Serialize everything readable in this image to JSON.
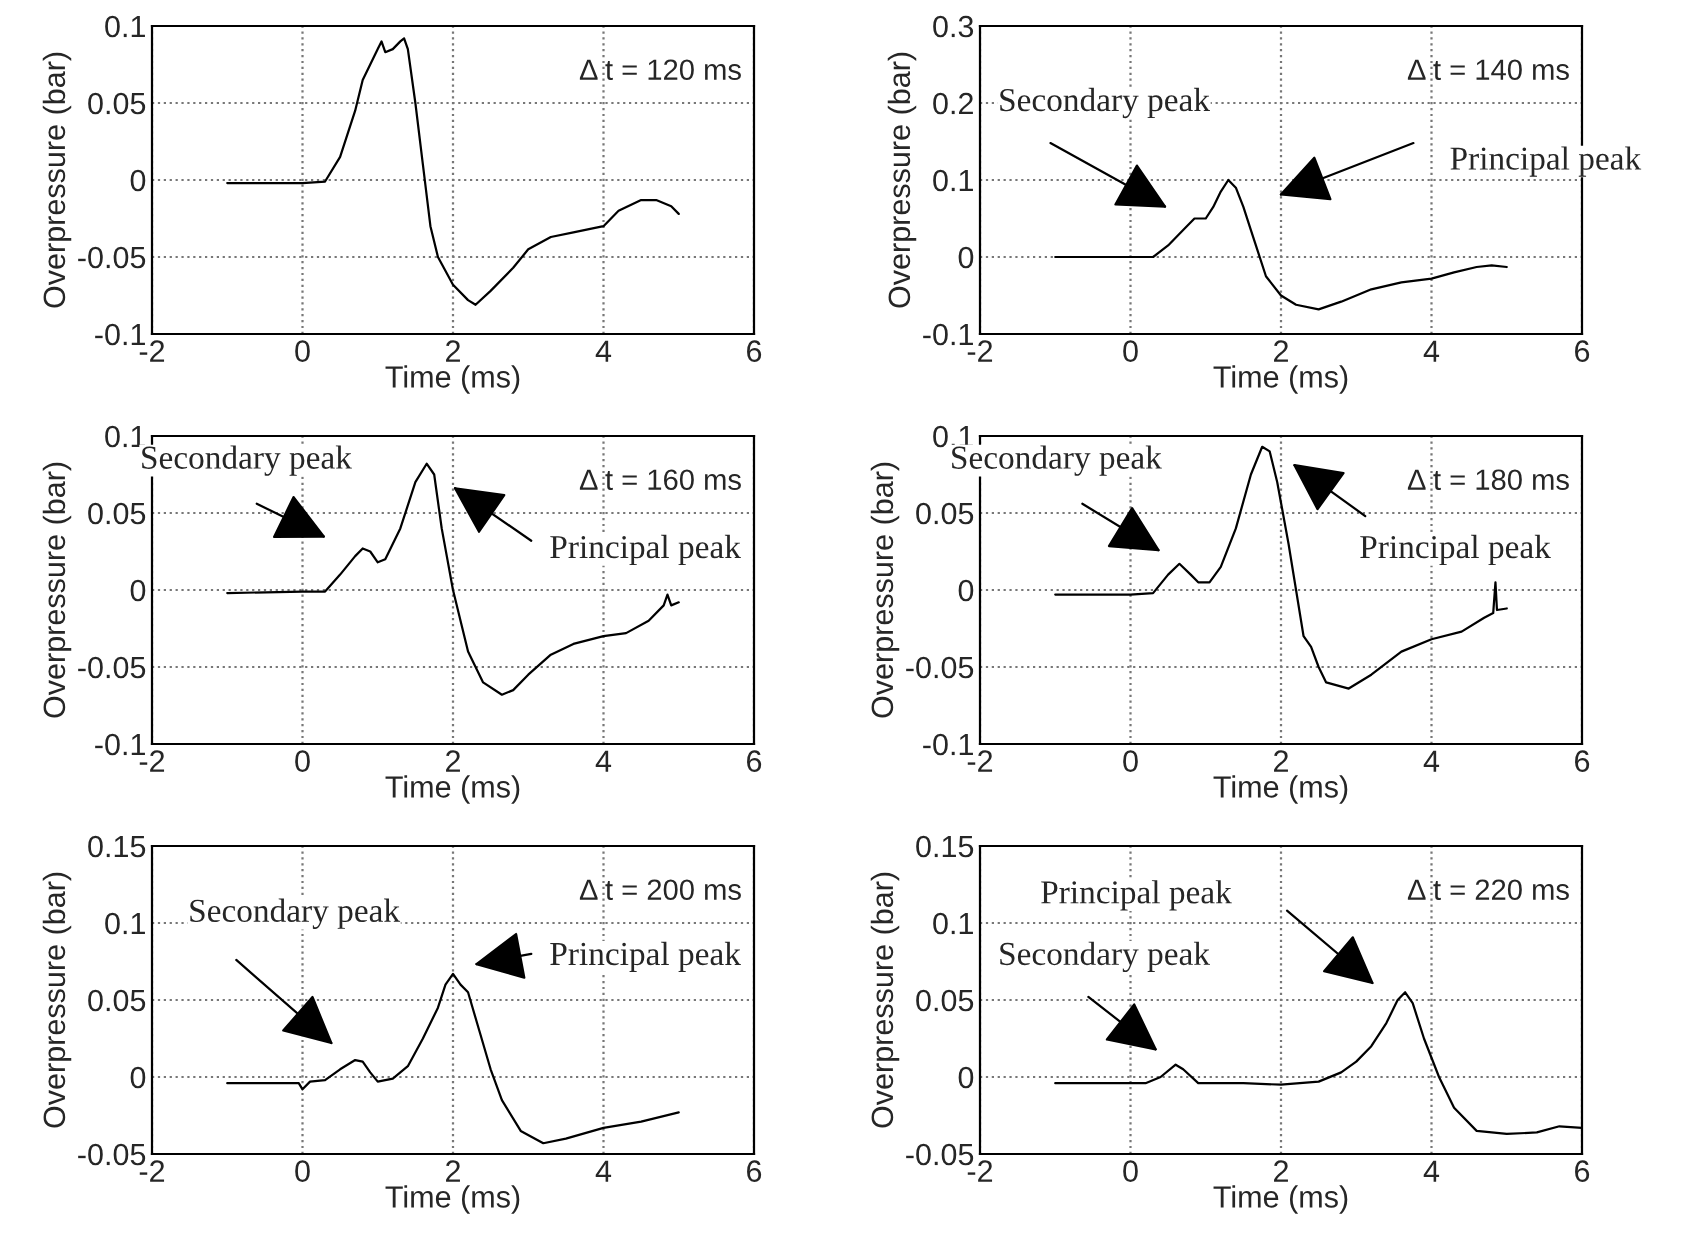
{
  "chart_data": [
    {
      "type": "line",
      "xlabel": "Time (ms)",
      "ylabel": "Overpressure (bar)",
      "xlim": [
        -2,
        6
      ],
      "ylim": [
        -0.1,
        0.1
      ],
      "xticks": [
        -2,
        0,
        2,
        4,
        6
      ],
      "yticks": [
        -0.1,
        -0.05,
        0,
        0.05,
        0.1
      ],
      "grid": true,
      "legend": false,
      "marker": "none",
      "line_style": "solid",
      "annotations": [
        "Δ t = 120 ms"
      ],
      "series": [
        {
          "color": "#000000",
          "x": [
            -1,
            -0.5,
            0,
            0.3,
            0.5,
            0.7,
            0.8,
            0.9,
            1.0,
            1.05,
            1.1,
            1.2,
            1.3,
            1.35,
            1.4,
            1.5,
            1.6,
            1.7,
            1.8,
            2.0,
            2.2,
            2.3,
            2.5,
            2.8,
            3.0,
            3.3,
            3.6,
            4.0,
            4.2,
            4.5,
            4.7,
            4.9,
            5.0
          ],
          "values": [
            -0.002,
            -0.002,
            -0.002,
            -0.001,
            0.015,
            0.045,
            0.065,
            0.075,
            0.085,
            0.09,
            0.083,
            0.085,
            0.09,
            0.092,
            0.085,
            0.05,
            0.01,
            -0.03,
            -0.05,
            -0.068,
            -0.078,
            -0.081,
            -0.072,
            -0.057,
            -0.045,
            -0.037,
            -0.034,
            -0.03,
            -0.02,
            -0.013,
            -0.013,
            -0.017,
            -0.022
          ]
        }
      ]
    },
    {
      "type": "line",
      "xlabel": "Time (ms)",
      "ylabel": "Overpressure (bar)",
      "xlim": [
        -2,
        6
      ],
      "ylim": [
        -0.1,
        0.3
      ],
      "xticks": [
        -2,
        0,
        2,
        4,
        6
      ],
      "yticks": [
        -0.1,
        0,
        0.1,
        0.2,
        0.3
      ],
      "grid": true,
      "legend": false,
      "marker": "none",
      "line_style": "solid",
      "annotations": [
        "Δ t = 140 ms",
        "Secondary peak",
        "Principal peak"
      ],
      "series": [
        {
          "color": "#000000",
          "x": [
            -1,
            0,
            0.3,
            0.5,
            0.7,
            0.85,
            1.0,
            1.1,
            1.2,
            1.3,
            1.4,
            1.5,
            1.6,
            1.7,
            1.8,
            2.0,
            2.2,
            2.5,
            2.8,
            3.2,
            3.6,
            4.0,
            4.3,
            4.6,
            4.8,
            5.0
          ],
          "values": [
            0,
            0,
            0,
            0.015,
            0.035,
            0.05,
            0.05,
            0.065,
            0.085,
            0.1,
            0.09,
            0.065,
            0.035,
            0.005,
            -0.025,
            -0.05,
            -0.062,
            -0.068,
            -0.058,
            -0.042,
            -0.033,
            -0.028,
            -0.02,
            -0.013,
            -0.011,
            -0.013
          ]
        }
      ]
    },
    {
      "type": "line",
      "xlabel": "Time (ms)",
      "ylabel": "Overpressure (bar)",
      "xlim": [
        -2,
        6
      ],
      "ylim": [
        -0.1,
        0.1
      ],
      "xticks": [
        -2,
        0,
        2,
        4,
        6
      ],
      "yticks": [
        -0.1,
        -0.05,
        0,
        0.05,
        0.1
      ],
      "grid": true,
      "legend": false,
      "marker": "none",
      "line_style": "solid",
      "annotations": [
        "Δ t = 160 ms",
        "Secondary peak",
        "Principal peak"
      ],
      "series": [
        {
          "color": "#000000",
          "x": [
            -1,
            0,
            0.3,
            0.5,
            0.7,
            0.8,
            0.9,
            1.0,
            1.1,
            1.3,
            1.5,
            1.65,
            1.75,
            1.85,
            2.0,
            2.2,
            2.4,
            2.65,
            2.8,
            3.0,
            3.3,
            3.6,
            4.0,
            4.3,
            4.6,
            4.8,
            4.85,
            4.9,
            5.0
          ],
          "values": [
            -0.002,
            -0.001,
            -0.001,
            0.01,
            0.022,
            0.027,
            0.025,
            0.018,
            0.02,
            0.04,
            0.07,
            0.082,
            0.075,
            0.04,
            0.0,
            -0.04,
            -0.06,
            -0.068,
            -0.065,
            -0.055,
            -0.042,
            -0.035,
            -0.03,
            -0.028,
            -0.02,
            -0.01,
            -0.003,
            -0.01,
            -0.008
          ]
        }
      ]
    },
    {
      "type": "line",
      "xlabel": "Time (ms)",
      "ylabel": "Overpressure (bar)",
      "xlim": [
        -2,
        6
      ],
      "ylim": [
        -0.1,
        0.1
      ],
      "xticks": [
        -2,
        0,
        2,
        4,
        6
      ],
      "yticks": [
        -0.1,
        -0.05,
        0,
        0.05,
        0.1
      ],
      "grid": true,
      "legend": false,
      "marker": "none",
      "line_style": "solid",
      "annotations": [
        "Δ t = 180 ms",
        "Secondary peak",
        "Principal peak"
      ],
      "series": [
        {
          "color": "#000000",
          "x": [
            -1,
            0,
            0.3,
            0.5,
            0.65,
            0.8,
            0.9,
            1.05,
            1.2,
            1.4,
            1.6,
            1.75,
            1.85,
            1.95,
            2.1,
            2.2,
            2.3,
            2.4,
            2.5,
            2.6,
            2.9,
            3.2,
            3.6,
            4.0,
            4.4,
            4.7,
            4.82,
            4.85,
            4.87,
            5.0
          ],
          "values": [
            -0.003,
            -0.003,
            -0.002,
            0.01,
            0.017,
            0.01,
            0.005,
            0.005,
            0.015,
            0.04,
            0.075,
            0.093,
            0.09,
            0.07,
            0.03,
            0.0,
            -0.03,
            -0.037,
            -0.05,
            -0.06,
            -0.064,
            -0.055,
            -0.04,
            -0.032,
            -0.027,
            -0.018,
            -0.015,
            0.005,
            -0.013,
            -0.012
          ]
        }
      ]
    },
    {
      "type": "line",
      "xlabel": "Time (ms)",
      "ylabel": "Overpressure (bar)",
      "xlim": [
        -2,
        6
      ],
      "ylim": [
        -0.05,
        0.15
      ],
      "xticks": [
        -2,
        0,
        2,
        4,
        6
      ],
      "yticks": [
        -0.05,
        0,
        0.05,
        0.1,
        0.15
      ],
      "grid": true,
      "legend": false,
      "marker": "none",
      "line_style": "solid",
      "annotations": [
        "Δ t = 200 ms",
        "Secondary peak",
        "Principal peak"
      ],
      "series": [
        {
          "color": "#000000",
          "x": [
            -1,
            -0.05,
            0,
            0.1,
            0.3,
            0.5,
            0.7,
            0.8,
            0.9,
            1.0,
            1.2,
            1.4,
            1.6,
            1.8,
            1.9,
            2.0,
            2.1,
            2.2,
            2.35,
            2.5,
            2.65,
            2.9,
            3.2,
            3.5,
            4.0,
            4.5,
            5.0
          ],
          "values": [
            -0.004,
            -0.004,
            -0.008,
            -0.003,
            -0.002,
            0.005,
            0.011,
            0.01,
            0.003,
            -0.003,
            -0.001,
            0.007,
            0.025,
            0.045,
            0.06,
            0.067,
            0.06,
            0.055,
            0.03,
            0.005,
            -0.015,
            -0.035,
            -0.043,
            -0.04,
            -0.033,
            -0.029,
            -0.023
          ]
        }
      ]
    },
    {
      "type": "line",
      "xlabel": "Time (ms)",
      "ylabel": "Overpressure (bar)",
      "xlim": [
        -2,
        6
      ],
      "ylim": [
        -0.05,
        0.15
      ],
      "xticks": [
        -2,
        0,
        2,
        4,
        6
      ],
      "yticks": [
        -0.05,
        0,
        0.05,
        0.1,
        0.15
      ],
      "grid": true,
      "legend": false,
      "marker": "none",
      "line_style": "solid",
      "annotations": [
        "Δ t = 220 ms",
        "Principal peak",
        "Secondary peak"
      ],
      "series": [
        {
          "color": "#000000",
          "x": [
            -1,
            0,
            0.2,
            0.4,
            0.6,
            0.7,
            0.9,
            1.5,
            2.0,
            2.5,
            2.8,
            3.0,
            3.2,
            3.4,
            3.55,
            3.65,
            3.75,
            3.9,
            4.1,
            4.3,
            4.6,
            5.0,
            5.4,
            5.7,
            6.0
          ],
          "values": [
            -0.004,
            -0.004,
            -0.004,
            0.0,
            0.008,
            0.005,
            -0.004,
            -0.004,
            -0.005,
            -0.003,
            0.003,
            0.01,
            0.02,
            0.035,
            0.05,
            0.055,
            0.048,
            0.025,
            0.0,
            -0.02,
            -0.035,
            -0.037,
            -0.036,
            -0.032,
            -0.033
          ]
        }
      ]
    }
  ]
}
